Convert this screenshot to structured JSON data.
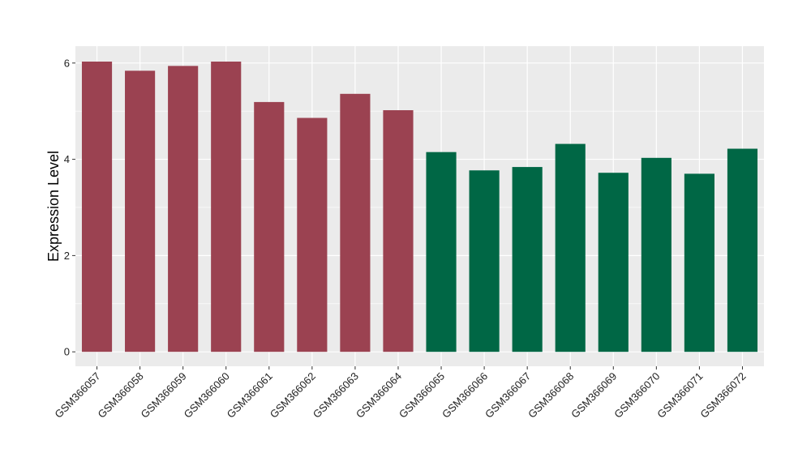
{
  "chart_data": {
    "type": "bar",
    "title": "",
    "xlabel": "",
    "ylabel": "Expression Level",
    "ylim": [
      -0.3,
      6.35
    ],
    "yticks": [
      0,
      2,
      4,
      6
    ],
    "grid": true,
    "categories": [
      "GSM366057",
      "GSM366058",
      "GSM366059",
      "GSM366060",
      "GSM366061",
      "GSM366062",
      "GSM366063",
      "GSM366064",
      "GSM366065",
      "GSM366066",
      "GSM366067",
      "GSM366068",
      "GSM366069",
      "GSM366070",
      "GSM366071",
      "GSM366072"
    ],
    "values": [
      6.03,
      5.84,
      5.94,
      6.03,
      5.19,
      4.86,
      5.36,
      5.02,
      4.15,
      3.77,
      3.84,
      4.32,
      3.72,
      4.03,
      3.7,
      4.22
    ],
    "bar_colors": [
      "#9b4251",
      "#9b4251",
      "#9b4251",
      "#9b4251",
      "#9b4251",
      "#9b4251",
      "#9b4251",
      "#9b4251",
      "#006745",
      "#006745",
      "#006745",
      "#006745",
      "#006745",
      "#006745",
      "#006745",
      "#006745"
    ],
    "panel_background": "#ebebeb",
    "grid_color": "#ffffff"
  }
}
